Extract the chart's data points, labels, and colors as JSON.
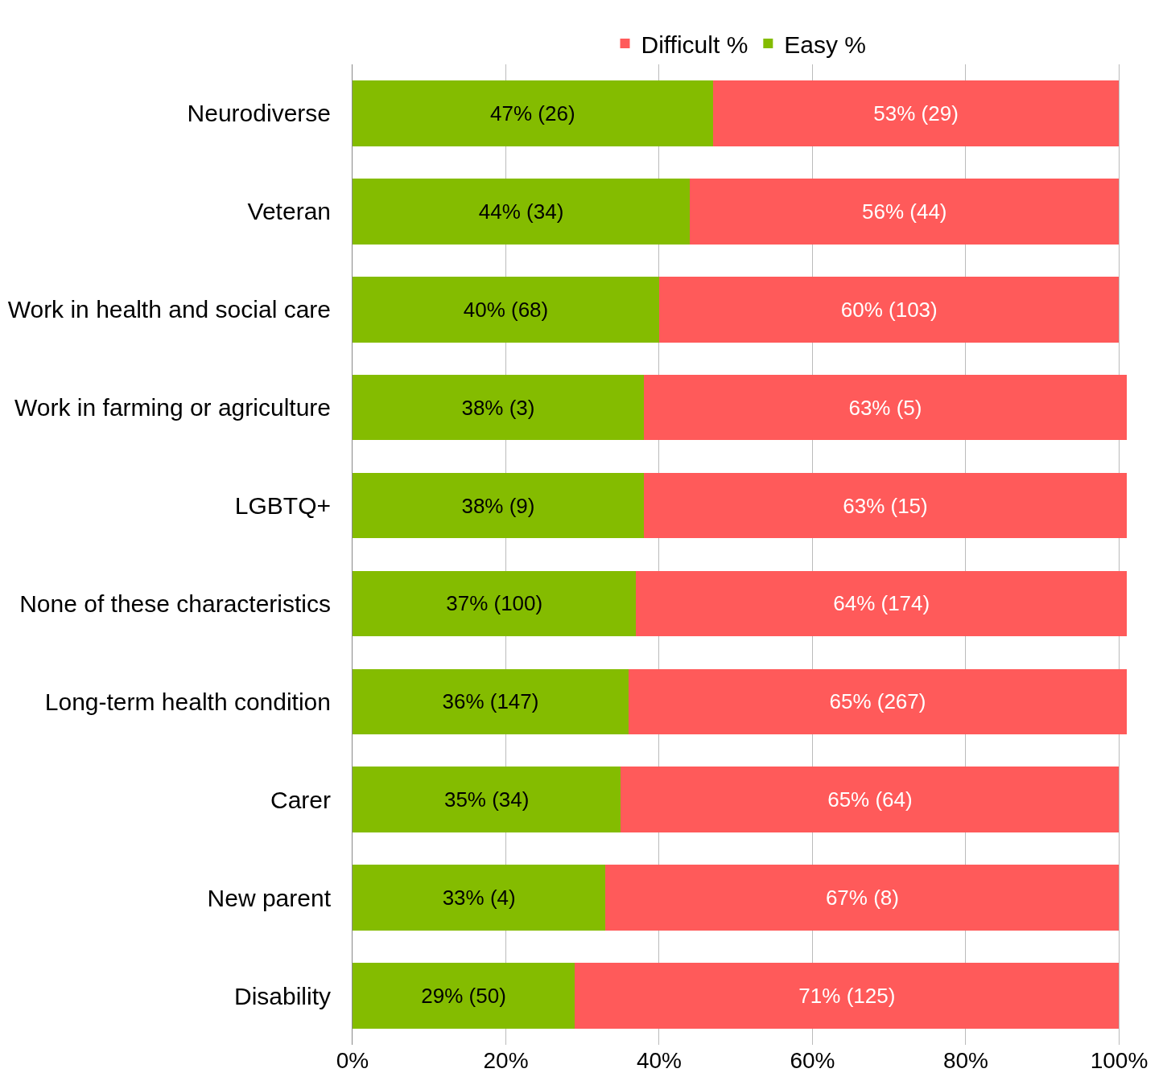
{
  "chart_data": {
    "type": "bar",
    "orientation": "horizontal",
    "stacked": true,
    "categories": [
      "Neurodiverse",
      "Veteran",
      "Work in health and social care",
      "Work in farming or agriculture",
      "LGBTQ+",
      "None of these characteristics",
      "Long-term health condition",
      "Carer",
      "New parent",
      "Disability"
    ],
    "series": [
      {
        "name": "Easy %",
        "color": "#84bc00",
        "values": [
          47,
          44,
          40,
          38,
          38,
          37,
          36,
          35,
          33,
          29
        ],
        "value_labels": [
          "47% (26)",
          "44% (34)",
          "40% (68)",
          "38% (3)",
          "38% (9)",
          "37% (100)",
          "36% (147)",
          "35% (34)",
          "33% (4)",
          "29% (50)"
        ]
      },
      {
        "name": "Difficult %",
        "color": "#ff5a5a",
        "values": [
          53,
          56,
          60,
          63,
          63,
          64,
          65,
          65,
          67,
          71
        ],
        "value_labels": [
          "53% (29)",
          "56% (44)",
          "60% (103)",
          "63% (5)",
          "63% (15)",
          "64% (174)",
          "65% (267)",
          "65% (64)",
          "67% (8)",
          "71% (125)"
        ]
      }
    ],
    "xlim": [
      0,
      101
    ],
    "xticks": [
      {
        "value": 0,
        "label": "0%"
      },
      {
        "value": 20,
        "label": "20%"
      },
      {
        "value": 40,
        "label": "40%"
      },
      {
        "value": 60,
        "label": "60%"
      },
      {
        "value": 80,
        "label": "80%"
      },
      {
        "value": 100,
        "label": "100%"
      }
    ],
    "grid": "x",
    "legend": "top"
  }
}
